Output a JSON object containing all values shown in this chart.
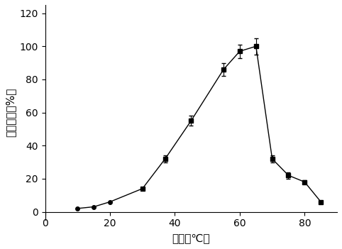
{
  "x": [
    10,
    15,
    20,
    30,
    37,
    45,
    55,
    60,
    65,
    70,
    75,
    80,
    85
  ],
  "y": [
    2,
    3,
    6,
    14,
    32,
    55,
    86,
    97,
    100,
    32,
    22,
    18,
    6
  ],
  "yerr": [
    0.5,
    0.5,
    0.5,
    0.5,
    2,
    3,
    4,
    4,
    5,
    2,
    2,
    1,
    0.5
  ],
  "xlabel": "温度（℃）",
  "ylabel": "相对酶活（%）",
  "xlim": [
    0,
    90
  ],
  "ylim": [
    -5,
    125
  ],
  "xticks": [
    0,
    20,
    40,
    60,
    80
  ],
  "yticks": [
    0,
    20,
    40,
    60,
    80,
    100,
    120
  ],
  "line_color": "#000000",
  "marker": "o",
  "marker_size": 4,
  "marker_color": "#000000",
  "capsize": 2,
  "linewidth": 1.0,
  "background_color": "#ffffff",
  "figsize": [
    4.82,
    3.51
  ],
  "dpi": 100
}
